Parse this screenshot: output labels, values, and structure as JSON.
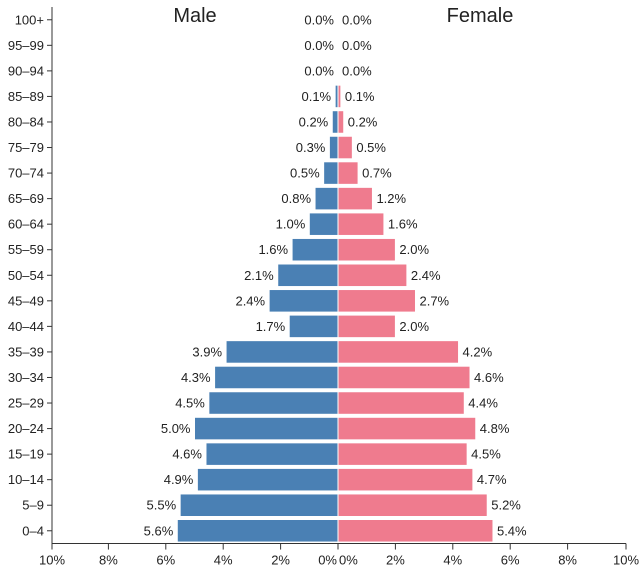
{
  "chart_data": {
    "type": "bar",
    "orientation": "horizontal",
    "layout": "population-pyramid",
    "male_title": "Male",
    "female_title": "Female",
    "categories": [
      "100+",
      "95–99",
      "90–94",
      "85–89",
      "80–84",
      "75–79",
      "70–74",
      "65–69",
      "60–64",
      "55–59",
      "50–54",
      "45–49",
      "40–44",
      "35–39",
      "30–34",
      "25–29",
      "20–24",
      "15–19",
      "10–14",
      "5–9",
      "0–4"
    ],
    "series": [
      {
        "name": "Male",
        "color": "#4a80b4",
        "values": [
          0.0,
          0.0,
          0.0,
          0.1,
          0.2,
          0.3,
          0.5,
          0.8,
          1.0,
          1.6,
          2.1,
          2.4,
          1.7,
          3.9,
          4.3,
          4.5,
          5.0,
          4.6,
          4.9,
          5.5,
          5.6
        ]
      },
      {
        "name": "Female",
        "color": "#ef7b8e",
        "values": [
          0.0,
          0.0,
          0.0,
          0.1,
          0.2,
          0.5,
          0.7,
          1.2,
          1.6,
          2.0,
          2.4,
          2.7,
          2.0,
          4.2,
          4.6,
          4.4,
          4.8,
          4.5,
          4.7,
          5.2,
          5.4
        ]
      }
    ],
    "value_labels_male": [
      "0.0%",
      "0.0%",
      "0.0%",
      "0.1%",
      "0.2%",
      "0.3%",
      "0.5%",
      "0.8%",
      "1.0%",
      "1.6%",
      "2.1%",
      "2.4%",
      "1.7%",
      "3.9%",
      "4.3%",
      "4.5%",
      "5.0%",
      "4.6%",
      "4.9%",
      "5.5%",
      "5.6%"
    ],
    "value_labels_female": [
      "0.0%",
      "0.0%",
      "0.0%",
      "0.1%",
      "0.2%",
      "0.5%",
      "0.7%",
      "1.2%",
      "1.6%",
      "2.0%",
      "2.4%",
      "2.7%",
      "2.0%",
      "4.2%",
      "4.6%",
      "4.4%",
      "4.8%",
      "4.5%",
      "4.7%",
      "5.2%",
      "5.4%"
    ],
    "x_ticks": [
      "10%",
      "8%",
      "6%",
      "4%",
      "2%",
      "0%",
      "0%",
      "2%",
      "4%",
      "6%",
      "8%",
      "10%"
    ],
    "xlim": [
      -10,
      10
    ],
    "grid": false,
    "legend": "none"
  }
}
